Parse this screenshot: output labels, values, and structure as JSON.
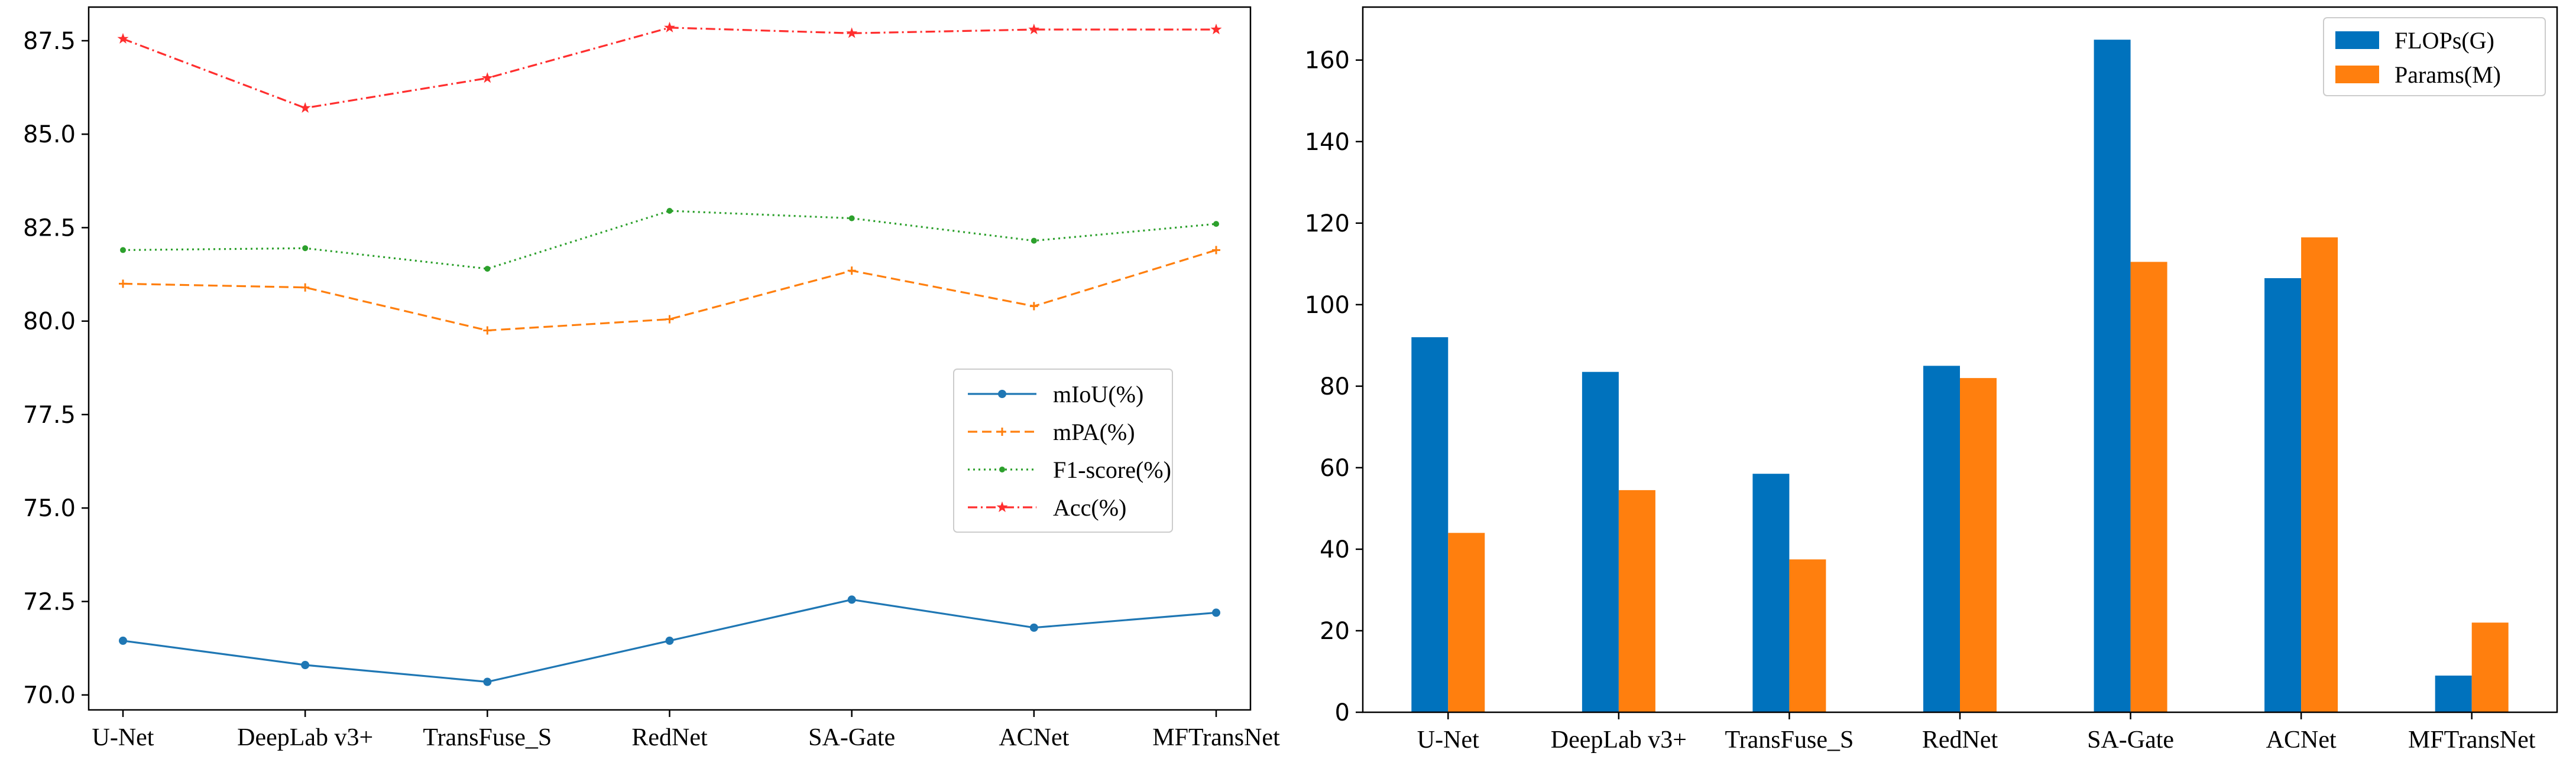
{
  "chart_data": [
    {
      "type": "line",
      "title": "",
      "xlabel": "",
      "ylabel": "",
      "categories": [
        "U-Net",
        "DeepLab v3+",
        "TransFuse_S",
        "RedNet",
        "SA-Gate",
        "ACNet",
        "MFTransNet"
      ],
      "ylim": [
        69.6,
        88.4
      ],
      "yticks": [
        70.0,
        72.5,
        75.0,
        77.5,
        80.0,
        82.5,
        85.0,
        87.5
      ],
      "ytick_labels": [
        "70.0",
        "72.5",
        "75.0",
        "77.5",
        "80.0",
        "82.5",
        "85.0",
        "87.5"
      ],
      "grid": false,
      "legend_position": "center-right",
      "series": [
        {
          "name": "mIoU(%)",
          "values": [
            71.45,
            70.8,
            70.35,
            71.45,
            72.55,
            71.8,
            72.2
          ],
          "color": "#1f77b4",
          "style": "solid",
          "marker": "circle"
        },
        {
          "name": "mPA(%)",
          "values": [
            81.0,
            80.9,
            79.75,
            80.05,
            81.35,
            80.4,
            81.9
          ],
          "color": "#ff7f0e",
          "style": "dashed",
          "marker": "plus"
        },
        {
          "name": "F1-score(%)",
          "values": [
            81.9,
            81.95,
            81.4,
            82.95,
            82.75,
            82.15,
            82.6
          ],
          "color": "#2ca02c",
          "style": "dotted",
          "marker": "point"
        },
        {
          "name": "Acc(%)",
          "values": [
            87.55,
            85.7,
            86.5,
            87.85,
            87.7,
            87.8,
            87.8
          ],
          "color": "#ff2e2e",
          "style": "dashdot",
          "marker": "star"
        }
      ]
    },
    {
      "type": "bar",
      "title": "",
      "xlabel": "",
      "ylabel": "",
      "categories": [
        "U-Net",
        "DeepLab v3+",
        "TransFuse_S",
        "RedNet",
        "SA-Gate",
        "ACNet",
        "MFTransNet"
      ],
      "ylim": [
        0,
        173
      ],
      "yticks": [
        0,
        20,
        40,
        60,
        80,
        100,
        120,
        140,
        160
      ],
      "ytick_labels": [
        "0",
        "20",
        "40",
        "60",
        "80",
        "100",
        "120",
        "140",
        "160"
      ],
      "grid": false,
      "legend_position": "top-right",
      "series": [
        {
          "name": "FLOPs(G)",
          "values": [
            92.0,
            83.5,
            58.5,
            85.0,
            165.0,
            106.5,
            9.0
          ],
          "color": "#0072bd"
        },
        {
          "name": "Params(M)",
          "values": [
            44.0,
            54.5,
            37.5,
            82.0,
            110.5,
            116.5,
            22.0
          ],
          "color": "#ff7f0e"
        }
      ]
    }
  ]
}
